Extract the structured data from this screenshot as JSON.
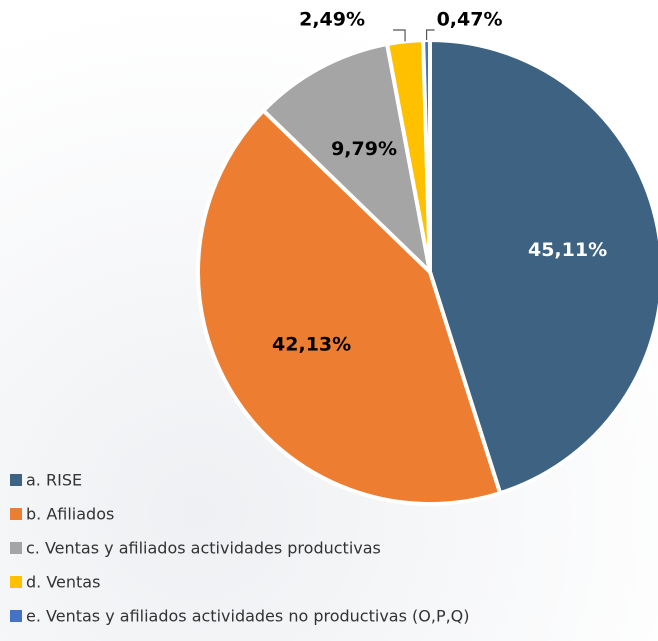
{
  "chart_data": {
    "type": "pie",
    "categories": [
      "a. RISE",
      "b. Afiliados",
      "c. Ventas y afiliados actividades productivas",
      "d. Ventas",
      "e. Ventas y afiliados actividades no productivas (O,P,Q)"
    ],
    "values": [
      45.11,
      42.13,
      9.79,
      2.49,
      0.47
    ],
    "value_labels": [
      "45,11%",
      "42,13%",
      "9,79%",
      "2,49%",
      "0,47%"
    ],
    "colors": [
      "#3d6282",
      "#ed7d31",
      "#a5a5a5",
      "#ffc000",
      "#4472c4"
    ],
    "legend": "bottom-left"
  }
}
